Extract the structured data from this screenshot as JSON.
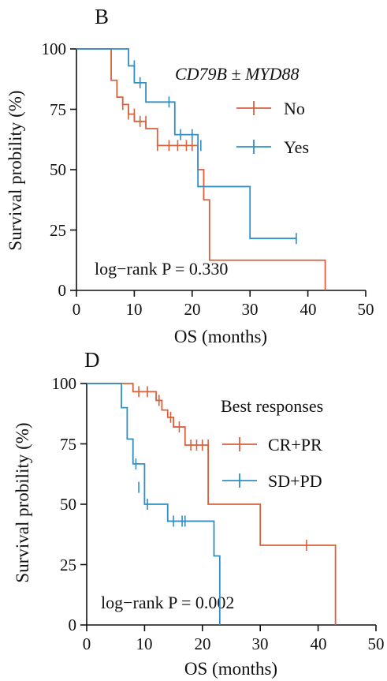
{
  "chart_data": [
    {
      "type": "line",
      "panel_label": "B",
      "xlabel": "OS (months)",
      "ylabel": "Survival probility (%)",
      "xlim": [
        0,
        50
      ],
      "ylim": [
        0,
        100
      ],
      "xticks": [
        "0",
        "10",
        "20",
        "30",
        "40",
        "50"
      ],
      "yticks": [
        "0",
        "25",
        "50",
        "75",
        "100"
      ],
      "grid": false,
      "legend": {
        "title": "CD79B ± MYD88",
        "placement": "top-right"
      },
      "annotation": "log−rank P = 0.330",
      "series": [
        {
          "name": "No",
          "color": "#d9603b",
          "x": [
            0,
            6,
            7,
            8,
            9,
            10,
            11,
            12,
            14,
            20,
            21,
            22,
            23,
            43
          ],
          "y": [
            100,
            87,
            80,
            77,
            73,
            70,
            70,
            67,
            60,
            60,
            50,
            37.5,
            12.5,
            0
          ],
          "censored": [
            [
              8,
              77
            ],
            [
              9,
              73
            ],
            [
              10,
              73
            ],
            [
              11,
              70
            ],
            [
              12,
              70
            ],
            [
              14,
              60
            ],
            [
              16,
              60
            ],
            [
              17.5,
              60
            ],
            [
              19,
              60
            ],
            [
              20,
              60
            ]
          ]
        },
        {
          "name": "Yes",
          "color": "#2f8fc4",
          "x": [
            0,
            9,
            10,
            11,
            12,
            16,
            17,
            21,
            30,
            38
          ],
          "y": [
            100,
            93,
            86,
            86,
            78,
            78,
            64.5,
            43,
            21.5,
            21.5
          ],
          "censored": [
            [
              10,
              93
            ],
            [
              11,
              86
            ],
            [
              16,
              78
            ],
            [
              18,
              64.5
            ],
            [
              20,
              64.5
            ],
            [
              21.5,
              60
            ],
            [
              38,
              21.5
            ]
          ]
        }
      ]
    },
    {
      "type": "line",
      "panel_label": "D",
      "xlabel": "OS (months)",
      "ylabel": "Survival probility (%)",
      "xlim": [
        0,
        50
      ],
      "ylim": [
        0,
        100
      ],
      "xticks": [
        "0",
        "10",
        "20",
        "30",
        "40",
        "50"
      ],
      "yticks": [
        "0",
        "25",
        "50",
        "75",
        "100"
      ],
      "grid": false,
      "legend": {
        "title": "Best responses",
        "placement": "top-right"
      },
      "annotation": "log−rank P = 0.002",
      "series": [
        {
          "name": "CR+PR",
          "color": "#d9603b",
          "x": [
            0,
            8,
            12,
            13,
            14,
            15,
            17,
            21,
            30,
            43
          ],
          "y": [
            100,
            96.6,
            93,
            89,
            86,
            82,
            74.5,
            50,
            33,
            0
          ],
          "censored": [
            [
              9,
              96.6
            ],
            [
              10.5,
              96.6
            ],
            [
              12.5,
              93
            ],
            [
              14.5,
              86
            ],
            [
              16,
              82
            ],
            [
              18,
              74.5
            ],
            [
              19,
              74.5
            ],
            [
              20,
              74.5
            ],
            [
              21,
              74.5
            ],
            [
              38,
              33
            ]
          ]
        },
        {
          "name": "SD+PD",
          "color": "#2f8fc4",
          "x": [
            0,
            6,
            7,
            8,
            10,
            14,
            22,
            23
          ],
          "y": [
            100,
            90,
            77,
            66.7,
            50,
            43,
            28.6,
            0
          ],
          "censored": [
            [
              8.5,
              66.7
            ],
            [
              9,
              57
            ],
            [
              10.5,
              50
            ],
            [
              15,
              43
            ],
            [
              16.5,
              43
            ],
            [
              17,
              43
            ]
          ]
        }
      ]
    }
  ]
}
